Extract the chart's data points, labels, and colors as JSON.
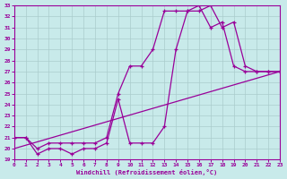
{
  "xlabel": "Windchill (Refroidissement éolien,°C)",
  "xlim": [
    0,
    23
  ],
  "ylim": [
    19,
    33
  ],
  "yticks": [
    19,
    20,
    21,
    22,
    23,
    24,
    25,
    26,
    27,
    28,
    29,
    30,
    31,
    32,
    33
  ],
  "xticks": [
    0,
    1,
    2,
    3,
    4,
    5,
    6,
    7,
    8,
    9,
    10,
    11,
    12,
    13,
    14,
    15,
    16,
    17,
    18,
    19,
    20,
    21,
    22,
    23
  ],
  "bg_color": "#c8eaea",
  "grid_color": "#b0d0d0",
  "line_color": "#990099",
  "line1_x": [
    0,
    1,
    2,
    3,
    4,
    5,
    6,
    7,
    8,
    9,
    10,
    11,
    12,
    13,
    14,
    15,
    16,
    17,
    18,
    19,
    20,
    21,
    22,
    23
  ],
  "line1_y": [
    21.0,
    21.0,
    20.0,
    20.5,
    20.5,
    20.5,
    20.5,
    20.5,
    21.0,
    25.0,
    27.5,
    27.5,
    29.0,
    32.5,
    32.5,
    32.5,
    33.0,
    31.0,
    31.5,
    27.5,
    27.0,
    27.0,
    27.0,
    27.0
  ],
  "line2_x": [
    0,
    1,
    2,
    3,
    4,
    5,
    6,
    7,
    8,
    9,
    10,
    11,
    12,
    13,
    14,
    15,
    16,
    17,
    18,
    19,
    20,
    21,
    22,
    23
  ],
  "line2_y": [
    21.0,
    21.0,
    19.5,
    20.0,
    20.0,
    19.5,
    20.0,
    20.0,
    20.5,
    24.5,
    20.5,
    20.5,
    20.5,
    22.0,
    29.0,
    32.5,
    32.5,
    33.0,
    31.0,
    31.5,
    27.5,
    27.0,
    27.0,
    27.0
  ],
  "line3_x": [
    0,
    23
  ],
  "line3_y": [
    20.0,
    27.0
  ]
}
